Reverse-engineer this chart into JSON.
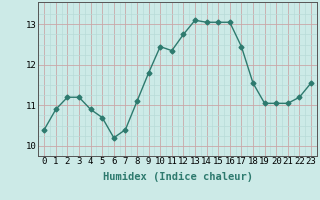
{
  "x": [
    0,
    1,
    2,
    3,
    4,
    5,
    6,
    7,
    8,
    9,
    10,
    11,
    12,
    13,
    14,
    15,
    16,
    17,
    18,
    19,
    20,
    21,
    22,
    23
  ],
  "y": [
    10.4,
    10.9,
    11.2,
    11.2,
    10.9,
    10.7,
    10.2,
    10.4,
    11.1,
    11.8,
    12.45,
    12.35,
    12.75,
    13.1,
    13.05,
    13.05,
    13.05,
    12.45,
    11.55,
    11.05,
    11.05,
    11.05,
    11.2,
    11.55
  ],
  "line_color": "#2d7a6e",
  "marker": "D",
  "marker_size": 2.5,
  "bg_color": "#cceae7",
  "grid_color_major": "#c9a8a8",
  "grid_color_minor": "#b8dbd8",
  "xlabel": "Humidex (Indice chaleur)",
  "xlabel_fontsize": 7.5,
  "ylim": [
    9.8,
    13.55
  ],
  "xlim": [
    -0.5,
    23.5
  ],
  "yticks": [
    10,
    11,
    12,
    13
  ],
  "xticks": [
    0,
    1,
    2,
    3,
    4,
    5,
    6,
    7,
    8,
    9,
    10,
    11,
    12,
    13,
    14,
    15,
    16,
    17,
    18,
    19,
    20,
    21,
    22,
    23
  ],
  "tick_fontsize": 6.5,
  "linewidth": 1.0
}
